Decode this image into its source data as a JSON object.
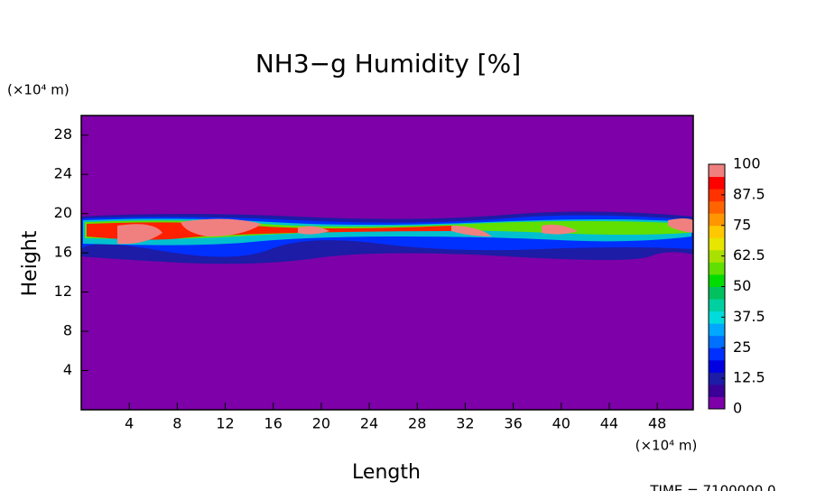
{
  "chart_data": {
    "type": "contour",
    "title": "NH3−g Humidity [%]",
    "x_label": "Length",
    "y_label": "Height",
    "x_unit": "(×10⁴ m)",
    "y_unit": "(×10⁴ m)",
    "footer": "TIME = 7100000.0",
    "xlim": [
      0,
      51
    ],
    "xticks": [
      4,
      8,
      12,
      16,
      20,
      24,
      28,
      32,
      36,
      40,
      44,
      48
    ],
    "ylim": [
      0,
      30
    ],
    "yticks": [
      4,
      8,
      12,
      16,
      20,
      24,
      28
    ],
    "colorbar": {
      "lim": [
        0,
        100
      ],
      "ticks": [
        0,
        12.5,
        25,
        37.5,
        50,
        62.5,
        75,
        87.5,
        100
      ],
      "colors": [
        "#7d00a8",
        "#3a0098",
        "#1c1ca6",
        "#0000e0",
        "#0030ff",
        "#0070ff",
        "#00a8ff",
        "#00dcdc",
        "#00d0a0",
        "#00c060",
        "#00dc00",
        "#60e000",
        "#a8e000",
        "#e6e600",
        "#ffc800",
        "#ff9600",
        "#ff6400",
        "#ff3200",
        "#ff0000",
        "#f08080"
      ]
    }
  }
}
